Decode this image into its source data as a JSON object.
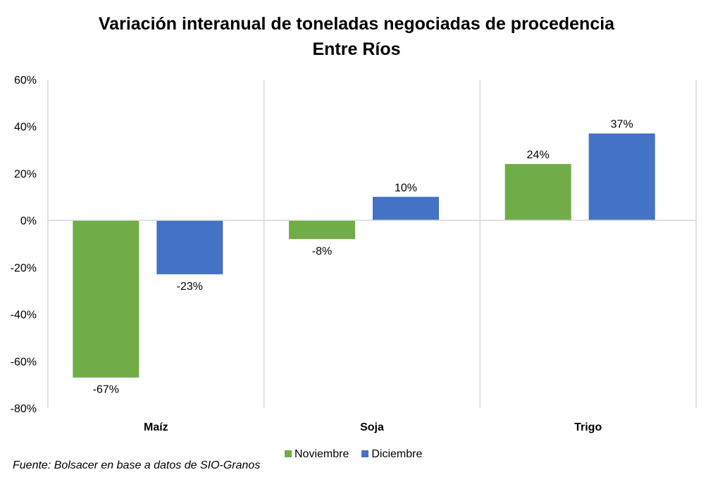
{
  "chart_data": {
    "type": "bar",
    "title": "Variación interanual de toneladas negociadas de procedencia",
    "subtitle": "Entre Ríos",
    "categories": [
      "Maíz",
      "Soja",
      "Trigo"
    ],
    "series": [
      {
        "name": "Noviembre",
        "color": "#70ad47",
        "values": [
          -67,
          -8,
          24
        ],
        "labels": [
          "-67%",
          "-8%",
          "24%"
        ]
      },
      {
        "name": "Diciembre",
        "color": "#4472c4",
        "values": [
          -23,
          10,
          37
        ],
        "labels": [
          "-23%",
          "10%",
          "37%"
        ]
      }
    ],
    "yticks": [
      60,
      40,
      20,
      0,
      -20,
      -40,
      -60,
      -80
    ],
    "ytick_labels": [
      "60%",
      "40%",
      "20%",
      "0%",
      "-20%",
      "-40%",
      "-60%",
      "-80%"
    ],
    "ylim": [
      -80,
      60
    ],
    "xlabel": "",
    "ylabel": "",
    "legend": "bottom"
  },
  "source": "Fuente: Bolsacer en base a datos de SIO-Granos"
}
